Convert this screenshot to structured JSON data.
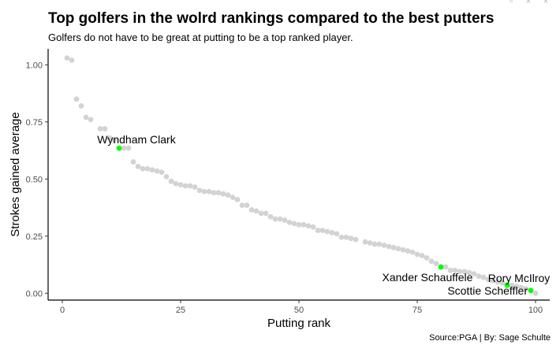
{
  "window_controls": [
    {
      "name": "minimize-icon",
      "glyph": "▫"
    },
    {
      "name": "close-icon",
      "glyph": "×"
    },
    {
      "name": "close-icon",
      "glyph": "×"
    }
  ],
  "chart_data": {
    "type": "scatter",
    "title": "Top golfers in the wolrd rankings compared to the best putters",
    "subtitle": "Golfers do not have to be great at putting to be a top ranked player.",
    "xlabel": "Putting rank",
    "ylabel": "Strokes gained average",
    "caption": "Source:PGA | By: Sage Schulte",
    "xlim": [
      -3,
      103
    ],
    "ylim": [
      -0.03,
      1.07
    ],
    "xticks": [
      0,
      25,
      50,
      75,
      100
    ],
    "yticks": [
      0.0,
      0.25,
      0.5,
      0.75,
      1.0
    ],
    "ytick_labels": [
      "0.00",
      "0.25",
      "0.50",
      "0.75",
      "1.00"
    ],
    "grid": false,
    "colors": {
      "other": "#d3d3d3",
      "highlight": "#00ff00"
    },
    "series": [
      {
        "group": "other",
        "points": [
          [
            1,
            1.03
          ],
          [
            2,
            1.02
          ],
          [
            3,
            0.85
          ],
          [
            4,
            0.82
          ],
          [
            5,
            0.77
          ],
          [
            6,
            0.76
          ],
          [
            8,
            0.72
          ],
          [
            9,
            0.72
          ],
          [
            10,
            0.68
          ],
          [
            11,
            0.67
          ],
          [
            13,
            0.635
          ],
          [
            14,
            0.635
          ],
          [
            15,
            0.575
          ],
          [
            16,
            0.555
          ],
          [
            17,
            0.545
          ],
          [
            18,
            0.545
          ],
          [
            19,
            0.54
          ],
          [
            20,
            0.535
          ],
          [
            21,
            0.53
          ],
          [
            22,
            0.51
          ],
          [
            23,
            0.49
          ],
          [
            24,
            0.48
          ],
          [
            25,
            0.475
          ],
          [
            26,
            0.47
          ],
          [
            27,
            0.47
          ],
          [
            28,
            0.465
          ],
          [
            29,
            0.45
          ],
          [
            30,
            0.445
          ],
          [
            31,
            0.445
          ],
          [
            32,
            0.44
          ],
          [
            33,
            0.44
          ],
          [
            34,
            0.435
          ],
          [
            35,
            0.43
          ],
          [
            36,
            0.42
          ],
          [
            37,
            0.41
          ],
          [
            38,
            0.385
          ],
          [
            39,
            0.385
          ],
          [
            40,
            0.365
          ],
          [
            41,
            0.36
          ],
          [
            42,
            0.35
          ],
          [
            43,
            0.35
          ],
          [
            44,
            0.335
          ],
          [
            45,
            0.325
          ],
          [
            46,
            0.325
          ],
          [
            47,
            0.32
          ],
          [
            48,
            0.31
          ],
          [
            49,
            0.305
          ],
          [
            50,
            0.3
          ],
          [
            51,
            0.3
          ],
          [
            52,
            0.295
          ],
          [
            53,
            0.29
          ],
          [
            54,
            0.275
          ],
          [
            55,
            0.275
          ],
          [
            56,
            0.27
          ],
          [
            57,
            0.265
          ],
          [
            58,
            0.26
          ],
          [
            59,
            0.245
          ],
          [
            60,
            0.245
          ],
          [
            61,
            0.24
          ],
          [
            62,
            0.235
          ],
          [
            64,
            0.225
          ],
          [
            65,
            0.22
          ],
          [
            66,
            0.215
          ],
          [
            67,
            0.215
          ],
          [
            68,
            0.21
          ],
          [
            69,
            0.205
          ],
          [
            70,
            0.2
          ],
          [
            71,
            0.195
          ],
          [
            72,
            0.19
          ],
          [
            73,
            0.185
          ],
          [
            74,
            0.18
          ],
          [
            75,
            0.17
          ],
          [
            76,
            0.165
          ],
          [
            77,
            0.155
          ],
          [
            78,
            0.14
          ],
          [
            79,
            0.13
          ],
          [
            81,
            0.115
          ],
          [
            82,
            0.1
          ],
          [
            83,
            0.1
          ],
          [
            84,
            0.095
          ],
          [
            85,
            0.095
          ],
          [
            86,
            0.09
          ],
          [
            87,
            0.085
          ],
          [
            88,
            0.075
          ],
          [
            89,
            0.07
          ],
          [
            90,
            0.06
          ],
          [
            91,
            0.055
          ],
          [
            92,
            0.05
          ],
          [
            93,
            0.045
          ],
          [
            95,
            0.035
          ],
          [
            96,
            0.03
          ],
          [
            97,
            0.025
          ],
          [
            98,
            0.02
          ],
          [
            100,
            0.0
          ]
        ]
      },
      {
        "group": "highlight",
        "points": [
          {
            "x": 12,
            "y": 0.635,
            "label": "Wyndham Clark",
            "label_pos": "above"
          },
          {
            "x": 80,
            "y": 0.115,
            "label": "Xander Schauffele",
            "label_pos": "below-left"
          },
          {
            "x": 94,
            "y": 0.035,
            "label": "Rory McIlroy",
            "label_pos": "above-right"
          },
          {
            "x": 99,
            "y": 0.012,
            "label": "Scottie Scheffler",
            "label_pos": "left"
          }
        ]
      }
    ]
  }
}
